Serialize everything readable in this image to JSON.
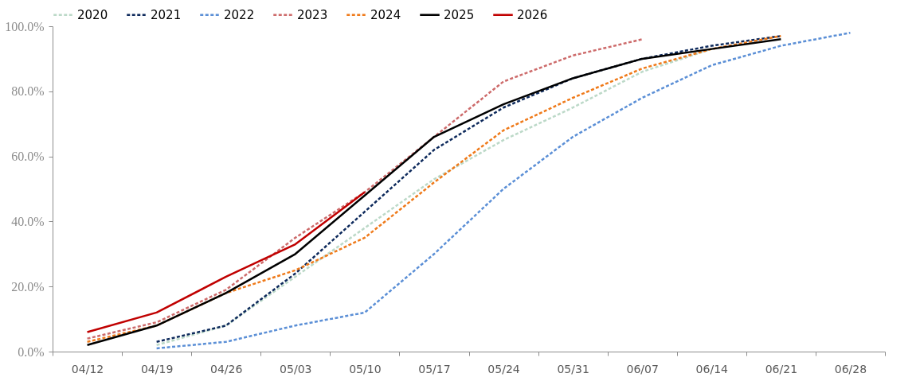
{
  "chart_data": {
    "type": "line",
    "categories": [
      "04/12",
      "04/19",
      "04/26",
      "05/03",
      "05/10",
      "05/17",
      "05/24",
      "05/31",
      "06/07",
      "06/14",
      "06/21",
      "06/28"
    ],
    "series": [
      {
        "name": "2020",
        "color": "#bcd9c8",
        "line_style": "dashed",
        "values": [
          null,
          2,
          8,
          23,
          38,
          53,
          65,
          75,
          86,
          93,
          null,
          null
        ]
      },
      {
        "name": "2021",
        "color": "#0e2a5c",
        "line_style": "dashed",
        "values": [
          null,
          3,
          8,
          24,
          43,
          62,
          75,
          84,
          90,
          94,
          97,
          null
        ]
      },
      {
        "name": "2022",
        "color": "#5b8fd6",
        "line_style": "dashed",
        "values": [
          null,
          1,
          3,
          8,
          12,
          30,
          50,
          66,
          78,
          88,
          94,
          98
        ]
      },
      {
        "name": "2023",
        "color": "#cd6b6b",
        "line_style": "dashed",
        "values": [
          4,
          9,
          19,
          35,
          49,
          66,
          83,
          91,
          96,
          null,
          null,
          null
        ]
      },
      {
        "name": "2024",
        "color": "#ef7a1a",
        "line_style": "dashed",
        "values": [
          3,
          8,
          18,
          25,
          35,
          52,
          68,
          78,
          87,
          93,
          97,
          null
        ]
      },
      {
        "name": "2025",
        "color": "#000000",
        "line_style": "solid",
        "values": [
          2,
          8,
          18,
          30,
          48,
          66,
          76,
          84,
          90,
          93,
          96,
          null
        ]
      },
      {
        "name": "2026",
        "color": "#c00000",
        "line_style": "solid",
        "values": [
          6,
          12,
          23,
          33,
          49,
          null,
          null,
          null,
          null,
          null,
          null,
          null
        ]
      }
    ],
    "ylim": [
      0,
      100
    ],
    "yticks": [
      {
        "value": 0,
        "label": "0.0%"
      },
      {
        "value": 20,
        "label": "20.0%"
      },
      {
        "value": 40,
        "label": "40.0%"
      },
      {
        "value": 60,
        "label": "60.0%"
      },
      {
        "value": 80,
        "label": "80.0%"
      },
      {
        "value": 100,
        "label": "100.0%"
      }
    ],
    "grid": false,
    "legend": "top",
    "marker": "none"
  }
}
